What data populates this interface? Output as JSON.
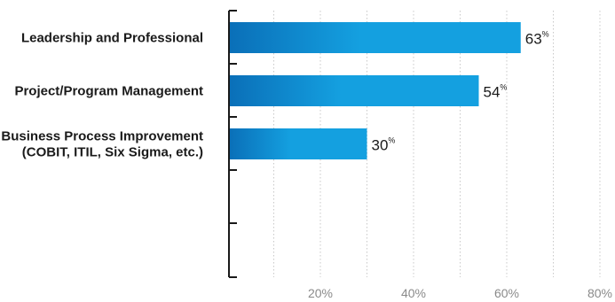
{
  "chart_data": {
    "type": "bar",
    "orientation": "horizontal",
    "categories": [
      [
        "Leadership and Professional"
      ],
      [
        "Project/Program Management"
      ],
      [
        "Business Process Improvement",
        "(COBIT, ITIL, Six Sigma, etc.)"
      ]
    ],
    "values": [
      63,
      54,
      30
    ],
    "value_suffix": "%",
    "xlim": [
      0,
      80
    ],
    "xticks": [
      20,
      40,
      60,
      80
    ],
    "xtick_labels": [
      "20%",
      "40%",
      "60%",
      "80%"
    ],
    "grid": "vertical dotted",
    "legend": "none",
    "colors": {
      "bar_start": "#0a6fb8",
      "bar_end": "#14a0e0",
      "axis": "#1a1a1a",
      "grid": "#c8c8c8",
      "tick_text": "#8a8a8a"
    }
  }
}
